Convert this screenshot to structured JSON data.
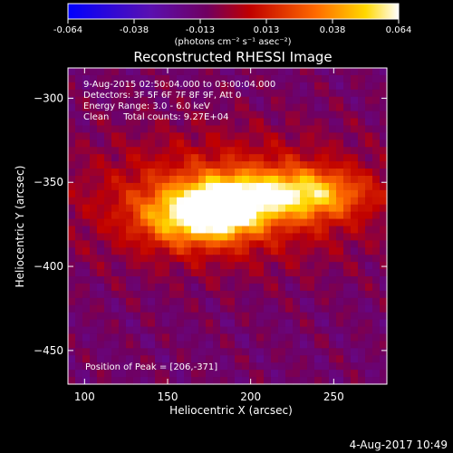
{
  "colorbar": {
    "ticks": [
      "-0.064",
      "-0.038",
      "-0.013",
      "0.013",
      "0.038",
      "0.064"
    ],
    "unit_label": "(photons cm⁻² s⁻¹ asec⁻²)",
    "range": [
      -0.064,
      0.064
    ]
  },
  "info": {
    "time_range": "9-Aug-2015 02:50:04.000 to 03:00:04.000",
    "detectors": "Detectors: 3F 5F 6F 7F 8F 9F, Att 0",
    "energy": "Energy Range: 3.0 - 6.0 keV",
    "clean": "Clean     Total counts: 9.27E+04",
    "peak": "Position of Peak = [206,-371]"
  },
  "footer": {
    "timestamp": "4-Aug-2017 10:49"
  },
  "colors": {
    "background": "#000000",
    "text": "#ffffff"
  },
  "chart_data": {
    "type": "heatmap",
    "title": "Reconstructed RHESSI Image",
    "xlabel": "Heliocentric X (arcsec)",
    "ylabel": "Heliocentric Y (arcsec)",
    "xlim": [
      90,
      282
    ],
    "ylim": [
      -470,
      -282
    ],
    "xticks": [
      100,
      150,
      200,
      250
    ],
    "yticks": [
      -300,
      -350,
      -400,
      -450
    ],
    "colormap": "blue-purple-red-yellow-white (rainbow-like)",
    "peak": [
      206,
      -371
    ],
    "sources": [
      {
        "x": 185,
        "y": -365,
        "sx": 16,
        "sy": 11,
        "amp": 0.063
      },
      {
        "x": 230,
        "y": -357,
        "sx": 26,
        "sy": 10,
        "amp": 0.05
      },
      {
        "x": 160,
        "y": -370,
        "sx": 20,
        "sy": 12,
        "amp": 0.042
      },
      {
        "x": 185,
        "y": -360,
        "sx": 60,
        "sy": 26,
        "amp": 0.032
      }
    ]
  }
}
